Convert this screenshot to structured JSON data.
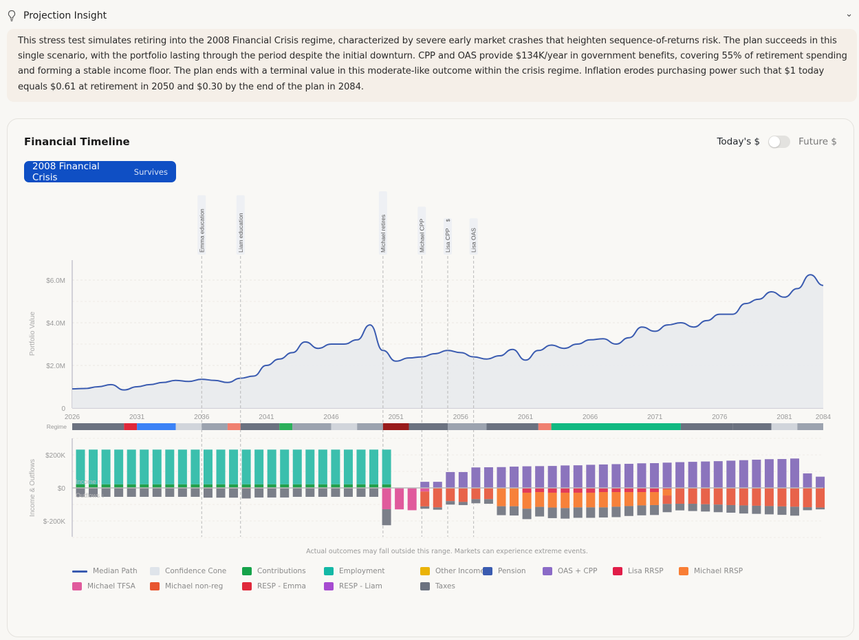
{
  "header": {
    "title": "Projection Insight",
    "icon": "lightbulb-icon",
    "collapse_icon": "chevron-down-icon"
  },
  "insight": {
    "text": "This stress test simulates retiring into the 2008 Financial Crisis regime, characterized by severe early market crashes that heighten sequence-of-returns risk. The plan succeeds in this single scenario, with the portfolio lasting through the period despite the initial downturn. CPP and OAS provide $134K/year in government benefits, covering 55% of retirement spending and forming a stable income floor. The plan ends with a terminal value in this moderate-like outcome within the crisis regime. Inflation erodes purchasing power such that $1 today equals $0.61 at retirement in 2050 and $0.30 by the end of the plan in 2084."
  },
  "timeline": {
    "title": "Financial Timeline",
    "scenario": {
      "name": "2008 Financial Crisis",
      "status": "Survives",
      "color": "#0f4fc4"
    },
    "toggle": {
      "left_label": "Today's $",
      "right_label": "Future $",
      "future_enabled": false
    },
    "note": "Actual outcomes may fall outside this range. Markets can experience extreme events."
  },
  "chart_data": [
    {
      "type": "area",
      "ylabel": "Portfolio Value",
      "xlim": [
        2026,
        2084
      ],
      "ylim": [
        0,
        7000000
      ],
      "yticks": [
        {
          "v": 0,
          "label": "0"
        },
        {
          "v": 2000000,
          "label": "$2.0M"
        },
        {
          "v": 4000000,
          "label": "$4.0M"
        },
        {
          "v": 6000000,
          "label": "$6.0M"
        }
      ],
      "xticks": [
        2026,
        2031,
        2036,
        2041,
        2046,
        2051,
        2056,
        2061,
        2066,
        2071,
        2076,
        2081,
        2084
      ],
      "grid": true,
      "series": [
        {
          "name": "Median Path",
          "color": "#3a5bb0",
          "x": [
            2026,
            2027,
            2028,
            2029,
            2030,
            2031,
            2032,
            2033,
            2034,
            2035,
            2036,
            2037,
            2038,
            2039,
            2040,
            2041,
            2042,
            2043,
            2044,
            2045,
            2046,
            2047,
            2048,
            2049,
            2050,
            2051,
            2052,
            2053,
            2054,
            2055,
            2056,
            2057,
            2058,
            2059,
            2060,
            2061,
            2062,
            2063,
            2064,
            2065,
            2066,
            2067,
            2068,
            2069,
            2070,
            2071,
            2072,
            2073,
            2074,
            2075,
            2076,
            2077,
            2078,
            2079,
            2080,
            2081,
            2082,
            2083,
            2084
          ],
          "y": [
            0.9,
            0.92,
            1.0,
            1.1,
            0.85,
            1.0,
            1.1,
            1.2,
            1.3,
            1.25,
            1.35,
            1.3,
            1.2,
            1.4,
            1.5,
            2.0,
            2.3,
            2.6,
            3.1,
            2.8,
            3.0,
            3.0,
            3.2,
            3.9,
            2.7,
            2.2,
            2.35,
            2.4,
            2.55,
            2.7,
            2.6,
            2.4,
            2.3,
            2.45,
            2.75,
            2.25,
            2.7,
            2.95,
            2.8,
            3.0,
            3.2,
            3.25,
            3.0,
            3.3,
            3.8,
            3.6,
            3.9,
            4.0,
            3.8,
            4.1,
            4.4,
            4.4,
            4.9,
            5.1,
            5.45,
            5.2,
            5.6,
            6.25,
            5.75
          ],
          "y_unit": "$M"
        }
      ],
      "events": [
        {
          "year": 2036,
          "label": "Emma education"
        },
        {
          "year": 2039,
          "label": "Liam education"
        },
        {
          "year": 2050,
          "label": "Michael retires"
        },
        {
          "year": 2053,
          "label": "Michael CPP"
        },
        {
          "year": 2055,
          "label": "Lisa CPP",
          "extra": "$"
        },
        {
          "year": 2057,
          "label": "Lisa OAS"
        }
      ],
      "regime_label": "Regime",
      "regimes": [
        {
          "from": 2026,
          "to": 2030,
          "color": "#6b7280"
        },
        {
          "from": 2030,
          "to": 2031,
          "color": "#e0283a"
        },
        {
          "from": 2031,
          "to": 2034,
          "color": "#3b82f6"
        },
        {
          "from": 2034,
          "to": 2036,
          "color": "#d1d5db"
        },
        {
          "from": 2036,
          "to": 2038,
          "color": "#9ca3af"
        },
        {
          "from": 2038,
          "to": 2039,
          "color": "#f08070"
        },
        {
          "from": 2039,
          "to": 2042,
          "color": "#6b7280"
        },
        {
          "from": 2042,
          "to": 2043,
          "color": "#2bb05a"
        },
        {
          "from": 2043,
          "to": 2046,
          "color": "#9ca3af"
        },
        {
          "from": 2046,
          "to": 2048,
          "color": "#d1d5db"
        },
        {
          "from": 2048,
          "to": 2050,
          "color": "#9ca3af"
        },
        {
          "from": 2050,
          "to": 2052,
          "color": "#991b1b"
        },
        {
          "from": 2052,
          "to": 2055,
          "color": "#6b7280"
        },
        {
          "from": 2055,
          "to": 2058,
          "color": "#9ca3af"
        },
        {
          "from": 2058,
          "to": 2062,
          "color": "#6b7280"
        },
        {
          "from": 2062,
          "to": 2063,
          "color": "#f08070"
        },
        {
          "from": 2063,
          "to": 2073,
          "color": "#10b981"
        },
        {
          "from": 2073,
          "to": 2077,
          "color": "#6b7280"
        },
        {
          "from": 2077,
          "to": 2080,
          "color": "#6b7280"
        },
        {
          "from": 2080,
          "to": 2082,
          "color": "#d1d5db"
        },
        {
          "from": 2082,
          "to": 2084,
          "color": "#9ca3af"
        }
      ]
    },
    {
      "type": "bar",
      "stacked": true,
      "ylabel": "Income & Outflows",
      "ylim": [
        -300,
        300
      ],
      "unit": "$K",
      "yticks": [
        {
          "v": 200,
          "label": "$200K"
        },
        {
          "v": 0,
          "label": "$0"
        },
        {
          "v": -200,
          "label": "$-200K"
        }
      ],
      "income_label": "Income ↑",
      "outflow_label": "Outflows ↓",
      "start_year": 2026,
      "series": [
        {
          "key": "contributions",
          "name": "Contributions",
          "color": "#22a04b",
          "values": [
            22,
            22,
            22,
            22,
            22,
            22,
            22,
            22,
            22,
            22,
            22,
            22,
            22,
            22,
            22,
            22,
            22,
            22,
            22,
            22,
            22,
            22,
            22,
            22,
            22,
            0,
            0,
            0,
            0,
            0,
            0,
            0,
            0,
            0,
            0,
            0,
            0,
            0,
            0,
            0,
            0,
            0,
            0,
            0,
            0,
            0,
            0,
            0,
            0,
            0,
            0,
            0,
            0,
            0,
            0,
            0,
            0,
            0,
            0
          ]
        },
        {
          "key": "employment",
          "name": "Employment",
          "color": "#3bbfad",
          "values": [
            210,
            210,
            210,
            210,
            210,
            210,
            210,
            210,
            210,
            210,
            210,
            210,
            210,
            210,
            210,
            210,
            210,
            210,
            210,
            210,
            210,
            210,
            210,
            210,
            210,
            0,
            0,
            0,
            0,
            0,
            0,
            0,
            0,
            0,
            0,
            0,
            0,
            0,
            0,
            0,
            0,
            0,
            0,
            0,
            0,
            0,
            0,
            0,
            0,
            0,
            0,
            0,
            0,
            0,
            0,
            0,
            0,
            0,
            0
          ]
        },
        {
          "key": "oas_cpp",
          "name": "OAS + CPP",
          "color": "#8b74bd",
          "values": [
            0,
            0,
            0,
            0,
            0,
            0,
            0,
            0,
            0,
            0,
            0,
            0,
            0,
            0,
            0,
            0,
            0,
            0,
            0,
            0,
            0,
            0,
            0,
            0,
            0,
            0,
            0,
            37,
            37,
            96,
            96,
            124,
            125,
            126,
            129,
            131,
            132,
            133,
            136,
            137,
            140,
            142,
            144,
            146,
            149,
            150,
            153,
            156,
            158,
            160,
            162,
            165,
            168,
            171,
            174,
            175,
            178,
            88,
            68
          ]
        },
        {
          "key": "resp_emma",
          "name": "RESP - Emma",
          "color": "#e0283a",
          "values": [
            0,
            0,
            0,
            0,
            0,
            0,
            0,
            0,
            0,
            0,
            -3,
            -3,
            -3,
            -4,
            0,
            0,
            0,
            0,
            0,
            0,
            0,
            0,
            0,
            0,
            0,
            0,
            0,
            0,
            0,
            0,
            0,
            0,
            0,
            0,
            0,
            0,
            0,
            0,
            0,
            0,
            0,
            0,
            0,
            0,
            0,
            0,
            0,
            0,
            0,
            0,
            0,
            0,
            0,
            0,
            0,
            0,
            0,
            0,
            0
          ]
        },
        {
          "key": "resp_liam",
          "name": "RESP - Liam",
          "color": "#a64bd0",
          "values": [
            0,
            0,
            0,
            0,
            0,
            0,
            0,
            0,
            0,
            0,
            0,
            0,
            0,
            0,
            -3,
            -3,
            -3,
            0,
            0,
            0,
            0,
            0,
            0,
            0,
            0,
            0,
            0,
            0,
            0,
            0,
            0,
            0,
            0,
            0,
            0,
            0,
            0,
            0,
            0,
            0,
            0,
            0,
            0,
            0,
            0,
            0,
            0,
            0,
            0,
            0,
            0,
            0,
            0,
            0,
            0,
            0,
            0,
            0,
            0
          ]
        },
        {
          "key": "michael_tfsa",
          "name": "Michael TFSA",
          "color": "#e05a9c",
          "values": [
            0,
            0,
            0,
            0,
            0,
            0,
            0,
            0,
            0,
            0,
            0,
            0,
            0,
            0,
            0,
            0,
            0,
            0,
            0,
            0,
            0,
            0,
            0,
            0,
            -129,
            -130,
            -135,
            -22,
            0,
            0,
            0,
            0,
            0,
            0,
            0,
            0,
            0,
            0,
            0,
            0,
            0,
            0,
            0,
            0,
            0,
            0,
            0,
            0,
            0,
            0,
            0,
            0,
            0,
            0,
            0,
            0,
            0,
            0,
            0
          ]
        },
        {
          "key": "lisa_rrsp",
          "name": "Lisa RRSP",
          "color": "#e23a58",
          "values": [
            0,
            0,
            0,
            0,
            0,
            0,
            0,
            0,
            0,
            0,
            0,
            0,
            0,
            0,
            0,
            0,
            0,
            0,
            0,
            0,
            0,
            0,
            0,
            0,
            0,
            0,
            0,
            0,
            0,
            0,
            0,
            0,
            0,
            0,
            0,
            -29,
            -25,
            -29,
            -29,
            -29,
            -29,
            -25,
            -25,
            -25,
            -25,
            -25,
            -8,
            0,
            0,
            0,
            0,
            0,
            0,
            0,
            0,
            0,
            0,
            0,
            0
          ]
        },
        {
          "key": "michael_rrsp",
          "name": "Michael RRSP",
          "color": "#f7813a",
          "values": [
            0,
            0,
            0,
            0,
            0,
            0,
            0,
            0,
            0,
            0,
            0,
            0,
            0,
            0,
            0,
            0,
            0,
            0,
            0,
            0,
            0,
            0,
            0,
            0,
            0,
            0,
            0,
            0,
            0,
            0,
            0,
            0,
            0,
            -111,
            -111,
            -97,
            -90,
            -90,
            -93,
            -89,
            -89,
            -93,
            -89,
            -85,
            -81,
            -79,
            -38,
            0,
            0,
            0,
            0,
            0,
            0,
            0,
            0,
            0,
            0,
            0,
            0
          ]
        },
        {
          "key": "michael_nonreg",
          "name": "Michael non-reg",
          "color": "#e8634a",
          "values": [
            0,
            0,
            0,
            0,
            0,
            0,
            0,
            0,
            0,
            0,
            0,
            0,
            0,
            0,
            0,
            0,
            0,
            0,
            0,
            0,
            0,
            0,
            0,
            0,
            0,
            0,
            0,
            -90,
            -118,
            -80,
            -85,
            -68,
            -68,
            0,
            0,
            0,
            0,
            0,
            0,
            0,
            0,
            0,
            0,
            0,
            0,
            0,
            -51,
            -96,
            -96,
            -99,
            -101,
            -104,
            -106,
            -108,
            -110,
            -112,
            -114,
            -117,
            -119
          ]
        },
        {
          "key": "taxes",
          "name": "Taxes",
          "color": "#7b7f89",
          "values": [
            -54,
            -54,
            -54,
            -54,
            -54,
            -54,
            -54,
            -54,
            -54,
            -54,
            -56,
            -56,
            -56,
            -60,
            -55,
            -55,
            -55,
            -54,
            -54,
            -54,
            -54,
            -54,
            -54,
            -54,
            -97,
            0,
            0,
            -14,
            -14,
            -21,
            -19,
            -25,
            -28,
            -54,
            -56,
            -63,
            -58,
            -64,
            -64,
            -63,
            -63,
            -61,
            -63,
            -60,
            -60,
            -60,
            -50,
            -40,
            -44,
            -44,
            -46,
            -46,
            -49,
            -49,
            -50,
            -51,
            -54,
            -18,
            -11
          ]
        }
      ]
    }
  ],
  "legend": [
    {
      "label": "Median Path",
      "color": "#3a5bb0",
      "kind": "line"
    },
    {
      "label": "Confidence Cone",
      "color": "#dfe4ea",
      "kind": "box"
    },
    {
      "label": "Contributions",
      "color": "#16a34a",
      "kind": "box"
    },
    {
      "label": "Employment",
      "color": "#14b8a6",
      "kind": "box"
    },
    {
      "label": "Other Income",
      "color": "#eab308",
      "kind": "box"
    },
    {
      "label": "Pension",
      "color": "#3a5bb0",
      "kind": "box"
    },
    {
      "label": "OAS + CPP",
      "color": "#8b6bc7",
      "kind": "box"
    },
    {
      "label": "Lisa RRSP",
      "color": "#e11d48",
      "kind": "box"
    },
    {
      "label": "Michael RRSP",
      "color": "#f97e35",
      "kind": "box"
    },
    {
      "label": "Michael TFSA",
      "color": "#e05a9c",
      "kind": "box"
    },
    {
      "label": "Michael non-reg",
      "color": "#e8552f",
      "kind": "box"
    },
    {
      "label": "RESP - Emma",
      "color": "#e0283a",
      "kind": "box"
    },
    {
      "label": "RESP - Liam",
      "color": "#a64bd0",
      "kind": "box"
    },
    {
      "label": "Taxes",
      "color": "#6b7280",
      "kind": "box"
    }
  ]
}
